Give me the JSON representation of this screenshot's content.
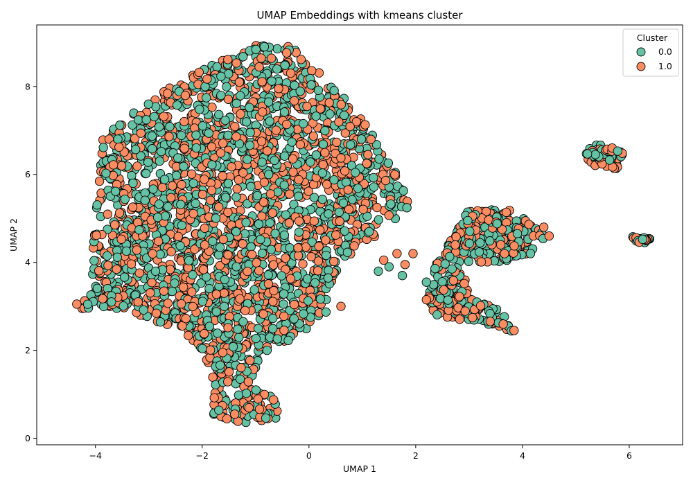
{
  "chart_data": {
    "type": "scatter",
    "title": "UMAP Embeddings with kmeans cluster",
    "xlabel": "UMAP 1",
    "ylabel": "UMAP 2",
    "xlim": [
      -5.1,
      7.0
    ],
    "ylim": [
      -0.15,
      9.4
    ],
    "xticks": [
      -4,
      -2,
      0,
      2,
      4,
      6
    ],
    "yticks": [
      0,
      2,
      4,
      6,
      8
    ],
    "xtick_labels": [
      "−4",
      "−2",
      "0",
      "2",
      "4",
      "6"
    ],
    "ytick_labels": [
      "0",
      "2",
      "4",
      "6",
      "8"
    ],
    "grid": false,
    "legend": {
      "title": "Cluster",
      "placement": "top-right",
      "entries": [
        {
          "label": "0.0",
          "color": "#66c2a5"
        },
        {
          "label": "1.0",
          "color": "#fc8d62"
        }
      ]
    },
    "series": [
      {
        "name": "0.0",
        "color": "#66c2a5"
      },
      {
        "name": "1.0",
        "color": "#fc8d62"
      }
    ],
    "clusters_regions": [
      {
        "shape": "polygon",
        "points": [
          [
            -4.5,
            2.9
          ],
          [
            -4.1,
            3.3
          ],
          [
            -3.9,
            6.8
          ],
          [
            -3.3,
            7.4
          ],
          [
            -2.6,
            8.0
          ],
          [
            -1.8,
            8.5
          ],
          [
            -1.0,
            8.95
          ],
          [
            -0.3,
            8.9
          ],
          [
            0.2,
            8.3
          ],
          [
            0.7,
            7.7
          ],
          [
            1.2,
            6.9
          ],
          [
            1.7,
            5.9
          ],
          [
            1.9,
            5.3
          ],
          [
            1.4,
            4.7
          ],
          [
            0.8,
            4.2
          ],
          [
            0.4,
            3.5
          ],
          [
            0.3,
            2.7
          ],
          [
            -0.4,
            2.2
          ],
          [
            -0.9,
            1.9
          ],
          [
            -1.1,
            1.3
          ],
          [
            -0.7,
            1.0
          ],
          [
            -0.5,
            0.5
          ],
          [
            -1.0,
            0.3
          ],
          [
            -1.8,
            0.5
          ],
          [
            -1.8,
            1.3
          ],
          [
            -2.0,
            2.0
          ],
          [
            -2.5,
            2.5
          ],
          [
            -3.2,
            2.8
          ],
          [
            -3.8,
            3.0
          ]
        ],
        "count": 2600
      },
      {
        "shape": "polygon",
        "points": [
          [
            2.5,
            4.2
          ],
          [
            3.0,
            5.2
          ],
          [
            3.8,
            5.2
          ],
          [
            4.5,
            4.6
          ],
          [
            4.0,
            4.1
          ],
          [
            3.5,
            4.0
          ],
          [
            2.8,
            4.0
          ]
        ],
        "count": 260
      },
      {
        "shape": "polygon",
        "points": [
          [
            2.2,
            3.0
          ],
          [
            2.4,
            4.1
          ],
          [
            2.9,
            3.8
          ],
          [
            3.0,
            3.2
          ],
          [
            3.6,
            2.9
          ],
          [
            3.9,
            2.4
          ],
          [
            3.3,
            2.6
          ],
          [
            2.8,
            2.7
          ],
          [
            2.4,
            2.8
          ]
        ],
        "count": 200
      },
      {
        "shape": "polygon",
        "points": [
          [
            5.1,
            6.6
          ],
          [
            5.5,
            6.7
          ],
          [
            5.9,
            6.5
          ],
          [
            5.8,
            6.1
          ],
          [
            5.4,
            6.2
          ],
          [
            5.3,
            6.2
          ]
        ],
        "count": 70
      },
      {
        "shape": "polygon",
        "points": [
          [
            6.05,
            4.6
          ],
          [
            6.4,
            4.55
          ],
          [
            6.35,
            4.45
          ],
          [
            6.1,
            4.45
          ]
        ],
        "count": 25
      }
    ],
    "scattered_points": [
      {
        "x": 1.95,
        "y": 4.2
      },
      {
        "x": 1.8,
        "y": 3.95
      },
      {
        "x": 1.65,
        "y": 4.2
      },
      {
        "x": 1.5,
        "y": 3.9
      },
      {
        "x": 1.4,
        "y": 4.05
      },
      {
        "x": 1.3,
        "y": 3.8
      },
      {
        "x": 1.75,
        "y": 3.7
      },
      {
        "x": 2.2,
        "y": 3.55
      },
      {
        "x": 2.2,
        "y": 3.15
      },
      {
        "x": 0.6,
        "y": 3.0
      },
      {
        "x": -3.7,
        "y": 3.1
      },
      {
        "x": -3.2,
        "y": 3.1
      },
      {
        "x": -4.35,
        "y": 3.05
      },
      {
        "x": 4.15,
        "y": 4.2
      },
      {
        "x": 4.4,
        "y": 4.8
      },
      {
        "x": 4.5,
        "y": 4.6
      }
    ]
  }
}
